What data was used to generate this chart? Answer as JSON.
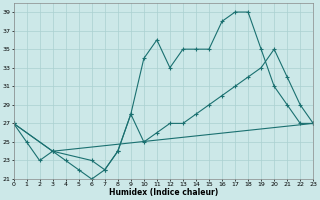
{
  "xlabel": "Humidex (Indice chaleur)",
  "bg_color": "#cce8e8",
  "grid_color": "#aad0d0",
  "line_color": "#1a7070",
  "xlim": [
    0,
    23
  ],
  "ylim": [
    21,
    40
  ],
  "yticks": [
    21,
    23,
    25,
    27,
    29,
    31,
    33,
    35,
    37,
    39
  ],
  "xticks": [
    0,
    1,
    2,
    3,
    4,
    5,
    6,
    7,
    8,
    9,
    10,
    11,
    12,
    13,
    14,
    15,
    16,
    17,
    18,
    19,
    20,
    21,
    22,
    23
  ],
  "line1_x": [
    0,
    1,
    2,
    3,
    4,
    5,
    6,
    7,
    8,
    9,
    10,
    11,
    12,
    13,
    14,
    15,
    16,
    17,
    18,
    19,
    20,
    21,
    22,
    23
  ],
  "line1_y": [
    27,
    25,
    23,
    24,
    23,
    22,
    21,
    22,
    24,
    28,
    34,
    36,
    33,
    35,
    35,
    35,
    38,
    39,
    39,
    35,
    31,
    29,
    27,
    27
  ],
  "line2_x": [
    0,
    3,
    6,
    7,
    8,
    9,
    10,
    11,
    12,
    13,
    14,
    15,
    16,
    17,
    18,
    19,
    20,
    21,
    22,
    23
  ],
  "line2_y": [
    27,
    24,
    23,
    22,
    24,
    28,
    25,
    26,
    27,
    27,
    28,
    29,
    30,
    31,
    32,
    33,
    35,
    32,
    29,
    27
  ],
  "line3_x": [
    0,
    3,
    23
  ],
  "line3_y": [
    27,
    24,
    27
  ]
}
